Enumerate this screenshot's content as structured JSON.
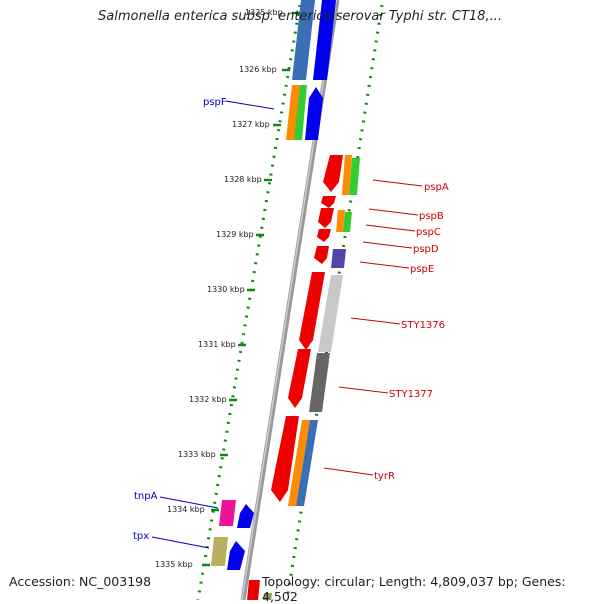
{
  "title": "Salmonella enterica subsp. enterica serovar Typhi str. CT18,...",
  "footer": {
    "accession": "Accession: NC_003198",
    "topology": "Topology: circular; Length: 4,809,037 bp; Genes: 4,502"
  },
  "ticks": [
    {
      "label": "1325 kbp"
    },
    {
      "label": "1326 kbp"
    },
    {
      "label": "1327 kbp"
    },
    {
      "label": "1328 kbp"
    },
    {
      "label": "1329 kbp"
    },
    {
      "label": "1330 kbp"
    },
    {
      "label": "1331 kbp"
    },
    {
      "label": "1332 kbp"
    },
    {
      "label": "1333 kbp"
    },
    {
      "label": "1334 kbp"
    },
    {
      "label": "1335 kbp"
    }
  ],
  "colors": {
    "backbone": "#888888",
    "dotted_track": "#118811",
    "tick": "#118811",
    "label_left": "#0000cc",
    "label_right": "#cc0000",
    "blue": "#0000ee",
    "steelblue": "#3a6fb5",
    "red": "#ee0000",
    "orange": "#ff8c00",
    "green": "#33cc33",
    "purple": "#5544aa",
    "lightgray": "#c8c8c8",
    "darkgray": "#666666",
    "magenta": "#ee1199",
    "olive": "#b8b060"
  },
  "left_labels": [
    {
      "name": "pspF"
    },
    {
      "name": "tnpA"
    },
    {
      "name": "tpx"
    }
  ],
  "right_labels": [
    {
      "name": "pspA"
    },
    {
      "name": "pspB"
    },
    {
      "name": "pspC"
    },
    {
      "name": "pspD"
    },
    {
      "name": "pspE"
    },
    {
      "name": "STY1376"
    },
    {
      "name": "STY1377"
    },
    {
      "name": "tyrR"
    }
  ]
}
